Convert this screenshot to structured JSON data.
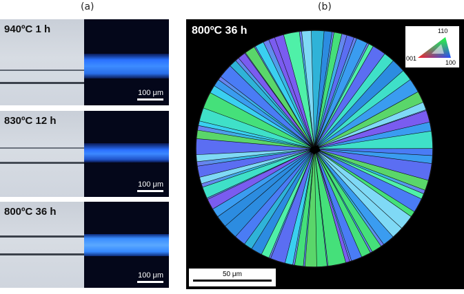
{
  "panels": {
    "a_letter": "(a)",
    "b_letter": "(b)"
  },
  "strips": [
    {
      "label": "940ºC 1 h",
      "scale": "100 μm"
    },
    {
      "label": "830ºC 12 h",
      "scale": "100 μm"
    },
    {
      "label": "800ºC 36 h",
      "scale": "100 μm"
    }
  ],
  "ebsd": {
    "label": "800ºC 36 h",
    "scale": "50 μm",
    "legend": {
      "top": "110",
      "left": "001",
      "right": "100"
    }
  },
  "colors": {
    "fluor_blue": "#2f7bff",
    "optical_gray": "#cfd5de"
  }
}
